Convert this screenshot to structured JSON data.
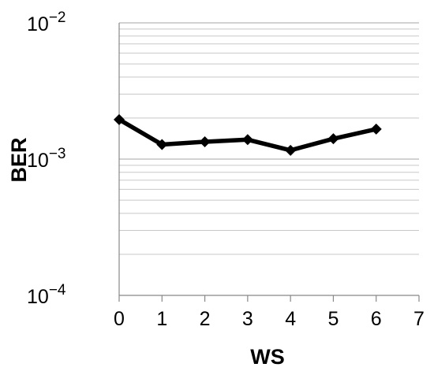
{
  "chart_data": {
    "type": "line",
    "title": "",
    "xlabel": "WS",
    "ylabel": "BER",
    "xlim": [
      0,
      7
    ],
    "ylim": [
      0.0001,
      0.01
    ],
    "yscale": "log",
    "grid": "horizontal minor gridlines",
    "x_ticks": [
      0,
      1,
      2,
      3,
      4,
      5,
      6,
      7
    ],
    "x_tick_labels": [
      "0",
      "1",
      "2",
      "3",
      "4",
      "5",
      "6",
      "7"
    ],
    "y_major_ticks": [
      {
        "value": 0.01,
        "base": "10",
        "exp": "−2"
      },
      {
        "value": 0.001,
        "base": "10",
        "exp": "−3"
      },
      {
        "value": 0.0001,
        "base": "10",
        "exp": "−4"
      }
    ],
    "series": [
      {
        "x": [
          0,
          1,
          2,
          3,
          4,
          5,
          6
        ],
        "y": [
          0.00195,
          0.00128,
          0.00134,
          0.00139,
          0.00116,
          0.00141,
          0.00166
        ],
        "color": "#000000",
        "marker": "diamond"
      }
    ]
  }
}
